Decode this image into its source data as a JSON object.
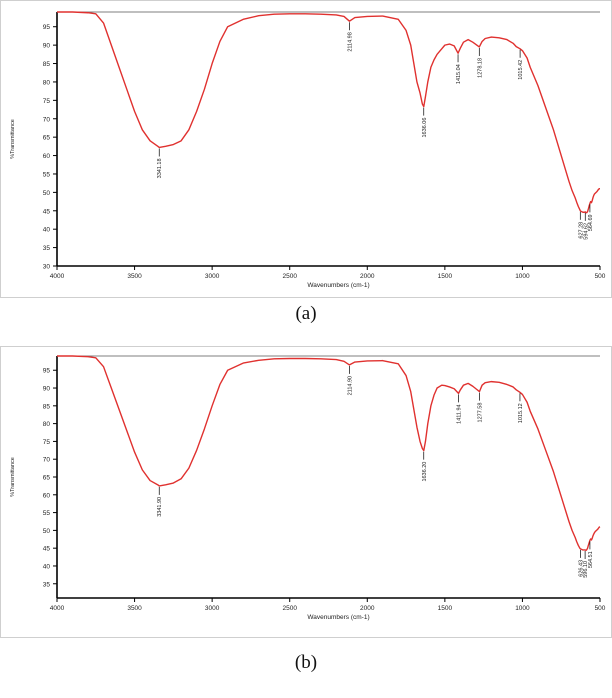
{
  "figure": {
    "caption_a": "(a)",
    "caption_b": "(b)"
  },
  "colors": {
    "spectrum": "#e0312f",
    "axis": "#000000",
    "tick_text": "#222222",
    "frame": "#cfcfcf"
  },
  "chart_data": [
    {
      "type": "line",
      "panel": "a",
      "xlabel": "Wavenumbers (cm-1)",
      "ylabel": "%Transmittance",
      "xlim": [
        4000,
        500
      ],
      "ylim": [
        30,
        99
      ],
      "x_ticks": [
        4000,
        3500,
        3000,
        2500,
        2000,
        1500,
        1000,
        500
      ],
      "x_tick_labels": [
        "4000",
        "3500",
        "3000",
        "2500",
        "2000",
        "1500",
        "1000",
        "500"
      ],
      "y_ticks": [
        30,
        35,
        40,
        45,
        50,
        55,
        60,
        65,
        70,
        75,
        80,
        85,
        90,
        95
      ],
      "y_tick_labels": [
        "30",
        "35",
        "40",
        "45",
        "50",
        "55",
        "60",
        "65",
        "70",
        "75",
        "80",
        "85",
        "90",
        "95"
      ],
      "grid": false,
      "series": [
        {
          "x": [
            4000,
            3900,
            3800,
            3750,
            3700,
            3650,
            3600,
            3550,
            3500,
            3450,
            3400,
            3350,
            3341,
            3300,
            3250,
            3200,
            3150,
            3100,
            3050,
            3000,
            2950,
            2900,
            2800,
            2700,
            2600,
            2500,
            2400,
            2300,
            2200,
            2150,
            2115,
            2080,
            2000,
            1900,
            1800,
            1750,
            1720,
            1700,
            1680,
            1660,
            1645,
            1636,
            1625,
            1610,
            1590,
            1570,
            1550,
            1520,
            1500,
            1470,
            1440,
            1415,
            1400,
            1380,
            1350,
            1320,
            1300,
            1278,
            1260,
            1240,
            1200,
            1150,
            1100,
            1060,
            1040,
            1015,
            1000,
            970,
            950,
            900,
            850,
            800,
            750,
            700,
            680,
            660,
            650,
            640,
            630,
            627,
            620,
            610,
            600,
            595,
            590,
            585,
            580,
            575,
            570,
            565,
            560,
            555,
            550,
            545,
            540,
            535,
            530,
            525,
            520,
            515,
            510,
            505,
            500
          ],
          "y": [
            99,
            99,
            98.8,
            98.5,
            96,
            90,
            84,
            78,
            72,
            67,
            64,
            62.5,
            62.2,
            62.5,
            63,
            64,
            67,
            72,
            78,
            85,
            91,
            95,
            97,
            98,
            98.4,
            98.5,
            98.5,
            98.4,
            98.2,
            97.8,
            96.5,
            97.5,
            97.8,
            97.9,
            97,
            94,
            90,
            85,
            80,
            77,
            74,
            73.3,
            76,
            80,
            84,
            86,
            87.5,
            89,
            90,
            90.3,
            89.8,
            87.8,
            89.2,
            90.8,
            91.5,
            90.8,
            90.2,
            89.5,
            91,
            91.8,
            92.2,
            92,
            91.5,
            90.5,
            89.6,
            89,
            88.5,
            86.5,
            84,
            79,
            73,
            67,
            60,
            53,
            50.5,
            48.5,
            47.3,
            46.2,
            45.3,
            45,
            44.8,
            44.6,
            44.6,
            44.7,
            44.5,
            44.5,
            44.8,
            45.5,
            46.3,
            47,
            47.5,
            47.2,
            47.8,
            48.6,
            49.2,
            49.6,
            49.8,
            50,
            50.2,
            50.5,
            50.8,
            51,
            51
          ]
        }
      ],
      "annotations": [
        {
          "x": 3341,
          "y": 62.2,
          "label": "3341.18"
        },
        {
          "x": 2115,
          "y": 96.5,
          "label": "2114.98"
        },
        {
          "x": 1636,
          "y": 73.3,
          "label": "1636.06"
        },
        {
          "x": 1415,
          "y": 87.8,
          "label": "1415.04"
        },
        {
          "x": 1278,
          "y": 89.5,
          "label": "1278.18"
        },
        {
          "x": 1015,
          "y": 89.0,
          "label": "1015.42"
        },
        {
          "x": 627,
          "y": 45.0,
          "label": "627.28"
        },
        {
          "x": 595,
          "y": 44.7,
          "label": "594.62"
        },
        {
          "x": 565,
          "y": 47.0,
          "label": "564.69"
        }
      ]
    },
    {
      "type": "line",
      "panel": "b",
      "xlabel": "Wavenumbers (cm-1)",
      "ylabel": "%Transmittance",
      "xlim": [
        4000,
        500
      ],
      "ylim": [
        31,
        99
      ],
      "x_ticks": [
        4000,
        3500,
        3000,
        2500,
        2000,
        1500,
        1000,
        500
      ],
      "x_tick_labels": [
        "4000",
        "3500",
        "3000",
        "2500",
        "2000",
        "1500",
        "1000",
        "500"
      ],
      "y_ticks": [
        35,
        40,
        45,
        50,
        55,
        60,
        65,
        70,
        75,
        80,
        85,
        90,
        95
      ],
      "y_tick_labels": [
        "35",
        "40",
        "45",
        "50",
        "55",
        "60",
        "65",
        "70",
        "75",
        "80",
        "85",
        "90",
        "95"
      ],
      "grid": false,
      "series": [
        {
          "x": [
            4000,
            3900,
            3800,
            3750,
            3700,
            3650,
            3600,
            3550,
            3500,
            3450,
            3400,
            3350,
            3341,
            3300,
            3250,
            3200,
            3150,
            3100,
            3050,
            3000,
            2950,
            2900,
            2800,
            2700,
            2600,
            2500,
            2400,
            2300,
            2200,
            2150,
            2115,
            2080,
            2000,
            1900,
            1800,
            1750,
            1720,
            1700,
            1680,
            1660,
            1645,
            1636,
            1625,
            1610,
            1590,
            1570,
            1550,
            1520,
            1500,
            1470,
            1440,
            1412,
            1400,
            1380,
            1350,
            1320,
            1300,
            1277,
            1260,
            1240,
            1200,
            1150,
            1100,
            1060,
            1040,
            1016,
            1000,
            970,
            950,
            900,
            850,
            800,
            750,
            700,
            680,
            660,
            650,
            640,
            630,
            626,
            620,
            610,
            600,
            596,
            590,
            585,
            580,
            575,
            570,
            565,
            560,
            555,
            550,
            545,
            540,
            535,
            530,
            525,
            520,
            515,
            510,
            505,
            500
          ],
          "y": [
            99,
            99,
            98.8,
            98.5,
            96,
            90,
            84,
            78,
            72,
            67,
            64,
            62.8,
            62.5,
            62.8,
            63.3,
            64.5,
            67.5,
            72.5,
            78.5,
            85,
            91,
            95,
            97,
            97.8,
            98.2,
            98.3,
            98.3,
            98.2,
            98,
            97.5,
            96.5,
            97.3,
            97.6,
            97.7,
            96.8,
            93.5,
            89,
            84,
            79,
            75,
            73,
            72.4,
            75,
            80,
            85,
            88,
            90,
            90.8,
            90.7,
            90.3,
            89.8,
            88.5,
            89.5,
            90.8,
            91.3,
            90.5,
            89.8,
            89,
            90.8,
            91.5,
            91.8,
            91.6,
            91,
            90.3,
            89.5,
            88.8,
            88.2,
            86,
            83.5,
            78.5,
            72.5,
            66.5,
            59.5,
            52.5,
            50,
            48,
            46.8,
            45.8,
            45,
            44.8,
            44.7,
            44.5,
            44.5,
            44.5,
            44.4,
            44.6,
            45,
            45.8,
            46.5,
            47.2,
            47.6,
            47.3,
            47.8,
            48.5,
            49,
            49.4,
            49.7,
            49.9,
            50.1,
            50.3,
            50.6,
            50.9,
            51
          ]
        }
      ],
      "annotations": [
        {
          "x": 3341,
          "y": 62.5,
          "label": "3341.90"
        },
        {
          "x": 2115,
          "y": 96.5,
          "label": "2114.90"
        },
        {
          "x": 1636,
          "y": 72.4,
          "label": "1636.20"
        },
        {
          "x": 1412,
          "y": 88.5,
          "label": "1411.94"
        },
        {
          "x": 1277,
          "y": 89.0,
          "label": "1277.58"
        },
        {
          "x": 1016,
          "y": 88.8,
          "label": "1015.12"
        },
        {
          "x": 626,
          "y": 44.8,
          "label": "626.43"
        },
        {
          "x": 596,
          "y": 44.5,
          "label": "596.10"
        },
        {
          "x": 565,
          "y": 47.2,
          "label": "564.51"
        }
      ]
    }
  ]
}
